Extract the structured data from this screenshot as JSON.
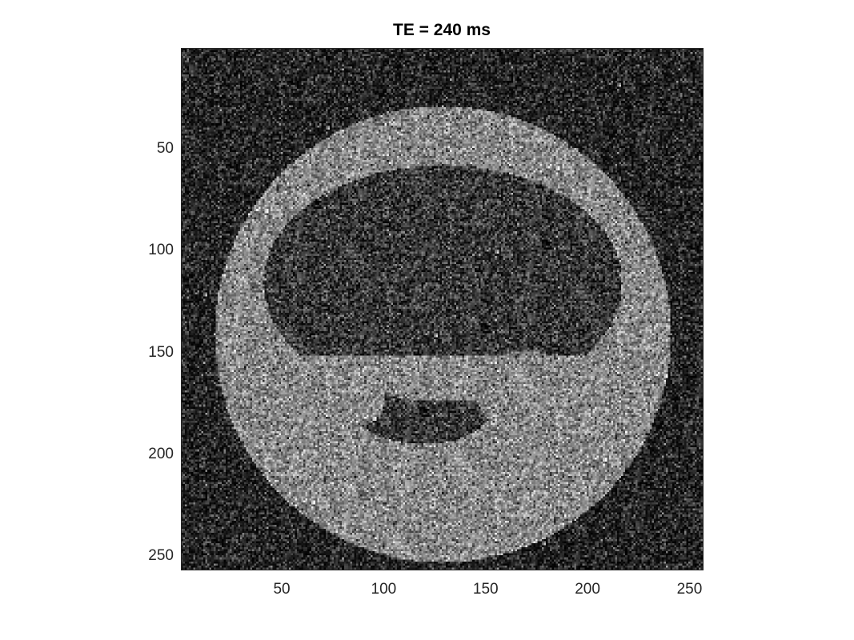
{
  "figure": {
    "title": "TE = 240 ms"
  },
  "axes": {
    "x_ticks": [
      {
        "value": 50,
        "label": "50"
      },
      {
        "value": 100,
        "label": "100"
      },
      {
        "value": 150,
        "label": "150"
      },
      {
        "value": 200,
        "label": "200"
      },
      {
        "value": 250,
        "label": "250"
      }
    ],
    "y_ticks": [
      {
        "value": 50,
        "label": "50"
      },
      {
        "value": 100,
        "label": "100"
      },
      {
        "value": 150,
        "label": "150"
      },
      {
        "value": 200,
        "label": "200"
      },
      {
        "value": 250,
        "label": "250"
      }
    ],
    "x_range": [
      0.5,
      256.5
    ],
    "y_range": [
      0.5,
      256.5
    ],
    "image_size": [
      256,
      256
    ],
    "colormap": "gray"
  }
}
